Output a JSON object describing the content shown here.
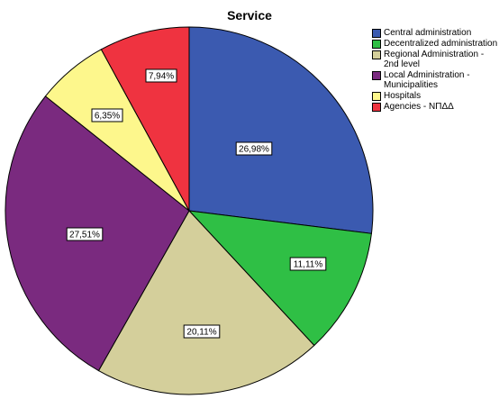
{
  "chart_data": {
    "type": "pie",
    "title": "Service",
    "categories": [
      "Central administration",
      "Decentralized administration",
      "Regional Administration -\n2nd level",
      "Local Administration -\nMunicipalities",
      "Hospitals",
      "Agencies - ΝΠΔΔ"
    ],
    "values": [
      26.98,
      11.11,
      20.11,
      27.51,
      6.35,
      7.94
    ],
    "labels": [
      "26,98%",
      "11,11%",
      "20,11%",
      "27,51%",
      "6,35%",
      "7,94%"
    ],
    "colors": [
      "#3b5ab0",
      "#2fbf45",
      "#d4cf9b",
      "#7a2a7f",
      "#fdf78c",
      "#ef3340"
    ],
    "legend_position": "top-right"
  }
}
